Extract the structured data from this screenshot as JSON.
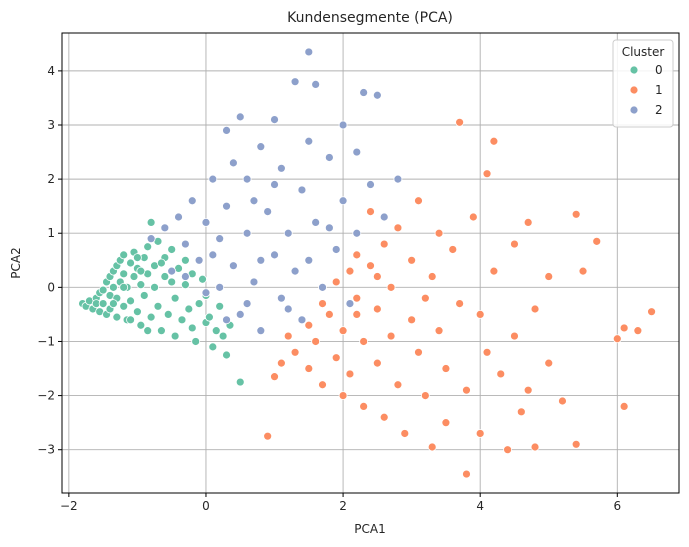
{
  "chart_data": {
    "type": "scatter",
    "title": "Kundensegmente (PCA)",
    "xlabel": "PCA1",
    "ylabel": "PCA2",
    "xlim": [
      -2.1,
      6.9
    ],
    "ylim": [
      -3.8,
      4.7
    ],
    "xticks": [
      -2,
      0,
      2,
      4,
      6
    ],
    "yticks": [
      -3,
      -2,
      -1,
      0,
      1,
      2,
      3,
      4
    ],
    "grid": true,
    "legend": {
      "title": "Cluster",
      "placement": "top-right"
    },
    "series": [
      {
        "name": "0",
        "color": "#66c2a5",
        "points": [
          [
            -1.8,
            -0.3
          ],
          [
            -1.75,
            -0.35
          ],
          [
            -1.7,
            -0.25
          ],
          [
            -1.65,
            -0.4
          ],
          [
            -1.6,
            -0.2
          ],
          [
            -1.6,
            -0.3
          ],
          [
            -1.55,
            -0.1
          ],
          [
            -1.55,
            -0.45
          ],
          [
            -1.5,
            -0.05
          ],
          [
            -1.5,
            -0.3
          ],
          [
            -1.45,
            0.1
          ],
          [
            -1.45,
            -0.5
          ],
          [
            -1.4,
            0.2
          ],
          [
            -1.4,
            -0.15
          ],
          [
            -1.4,
            -0.4
          ],
          [
            -1.35,
            0.3
          ],
          [
            -1.35,
            0.0
          ],
          [
            -1.3,
            -0.55
          ],
          [
            -1.3,
            0.4
          ],
          [
            -1.3,
            -0.2
          ],
          [
            -1.25,
            0.5
          ],
          [
            -1.25,
            0.1
          ],
          [
            -1.2,
            -0.35
          ],
          [
            -1.2,
            0.6
          ],
          [
            -1.2,
            0.25
          ],
          [
            -1.15,
            -0.6
          ],
          [
            -1.15,
            0.0
          ],
          [
            -1.1,
            0.45
          ],
          [
            -1.1,
            -0.25
          ],
          [
            -1.05,
            0.65
          ],
          [
            -1.05,
            0.2
          ],
          [
            -1.0,
            -0.45
          ],
          [
            -1.0,
            0.35
          ],
          [
            -0.95,
            0.05
          ],
          [
            -0.95,
            -0.7
          ],
          [
            -0.9,
            0.55
          ],
          [
            -0.9,
            -0.15
          ],
          [
            -0.85,
            0.75
          ],
          [
            -0.85,
            0.25
          ],
          [
            -0.8,
            -0.55
          ],
          [
            -0.8,
            1.2
          ],
          [
            -0.75,
            0.0
          ],
          [
            -0.75,
            0.4
          ],
          [
            -0.7,
            -0.35
          ],
          [
            -0.7,
            0.85
          ],
          [
            -0.65,
            -0.8
          ],
          [
            -0.6,
            0.2
          ],
          [
            -0.6,
            0.55
          ],
          [
            -0.55,
            -0.5
          ],
          [
            -0.5,
            0.1
          ],
          [
            -0.5,
            0.7
          ],
          [
            -0.45,
            -0.2
          ],
          [
            -0.45,
            -0.9
          ],
          [
            -0.4,
            0.35
          ],
          [
            -0.35,
            -0.6
          ],
          [
            -0.3,
            0.5
          ],
          [
            -0.3,
            0.05
          ],
          [
            -0.25,
            -0.4
          ],
          [
            -0.2,
            -0.75
          ],
          [
            -0.2,
            0.25
          ],
          [
            -0.15,
            -1.0
          ],
          [
            -0.1,
            -0.3
          ],
          [
            -0.05,
            0.15
          ],
          [
            0.0,
            -0.65
          ],
          [
            0.0,
            -0.15
          ],
          [
            0.05,
            -0.55
          ],
          [
            0.1,
            -1.1
          ],
          [
            0.15,
            -0.8
          ],
          [
            0.2,
            -0.35
          ],
          [
            0.25,
            -0.9
          ],
          [
            0.3,
            -1.25
          ],
          [
            0.35,
            -0.7
          ],
          [
            0.5,
            -1.75
          ],
          [
            -0.85,
            -0.8
          ],
          [
            -1.0,
            0.55
          ],
          [
            -1.1,
            -0.6
          ],
          [
            -0.95,
            0.3
          ],
          [
            -1.2,
            0.0
          ],
          [
            -1.35,
            -0.3
          ],
          [
            -0.65,
            0.45
          ]
        ]
      },
      {
        "name": "1",
        "color": "#fc8d62",
        "points": [
          [
            0.9,
            -2.75
          ],
          [
            1.0,
            -1.65
          ],
          [
            1.1,
            -1.4
          ],
          [
            1.2,
            -0.9
          ],
          [
            1.3,
            -1.2
          ],
          [
            1.4,
            -0.6
          ],
          [
            1.5,
            -0.7
          ],
          [
            1.5,
            -1.5
          ],
          [
            1.6,
            -1.0
          ],
          [
            1.7,
            -0.3
          ],
          [
            1.7,
            -1.8
          ],
          [
            1.8,
            -0.5
          ],
          [
            1.9,
            -1.3
          ],
          [
            1.9,
            0.1
          ],
          [
            2.0,
            -0.8
          ],
          [
            2.0,
            -2.0
          ],
          [
            2.1,
            0.3
          ],
          [
            2.1,
            -1.6
          ],
          [
            2.2,
            -0.2
          ],
          [
            2.2,
            0.6
          ],
          [
            2.3,
            -1.0
          ],
          [
            2.3,
            -2.2
          ],
          [
            2.4,
            0.4
          ],
          [
            2.4,
            1.4
          ],
          [
            2.5,
            -0.4
          ],
          [
            2.5,
            -1.4
          ],
          [
            2.6,
            0.8
          ],
          [
            2.6,
            -2.4
          ],
          [
            2.7,
            0.0
          ],
          [
            2.7,
            -0.9
          ],
          [
            2.8,
            1.1
          ],
          [
            2.8,
            -1.8
          ],
          [
            2.9,
            -2.7
          ],
          [
            3.0,
            0.5
          ],
          [
            3.0,
            -0.6
          ],
          [
            3.1,
            1.6
          ],
          [
            3.1,
            -1.2
          ],
          [
            3.2,
            -2.0
          ],
          [
            3.3,
            0.2
          ],
          [
            3.3,
            -2.95
          ],
          [
            3.4,
            -0.8
          ],
          [
            3.4,
            1.0
          ],
          [
            3.5,
            -1.5
          ],
          [
            3.5,
            -2.5
          ],
          [
            3.6,
            0.7
          ],
          [
            3.7,
            3.05
          ],
          [
            3.7,
            -0.3
          ],
          [
            3.8,
            -1.9
          ],
          [
            3.8,
            -3.45
          ],
          [
            3.9,
            1.3
          ],
          [
            4.0,
            -0.5
          ],
          [
            4.0,
            -2.7
          ],
          [
            4.1,
            2.1
          ],
          [
            4.1,
            -1.2
          ],
          [
            4.2,
            2.7
          ],
          [
            4.2,
            0.3
          ],
          [
            4.3,
            -1.6
          ],
          [
            4.4,
            -3.0
          ],
          [
            4.5,
            0.8
          ],
          [
            4.5,
            -0.9
          ],
          [
            4.6,
            -2.3
          ],
          [
            4.7,
            1.2
          ],
          [
            4.7,
            -1.9
          ],
          [
            4.8,
            -0.4
          ],
          [
            4.8,
            -2.95
          ],
          [
            5.0,
            0.2
          ],
          [
            5.0,
            -1.4
          ],
          [
            5.2,
            -2.1
          ],
          [
            5.4,
            1.35
          ],
          [
            5.4,
            -2.9
          ],
          [
            5.5,
            0.3
          ],
          [
            5.7,
            0.85
          ],
          [
            6.0,
            -0.95
          ],
          [
            6.1,
            -0.75
          ],
          [
            6.1,
            -2.2
          ],
          [
            6.3,
            -0.8
          ],
          [
            6.5,
            -0.45
          ],
          [
            2.2,
            -0.5
          ],
          [
            2.5,
            0.2
          ],
          [
            3.2,
            -0.2
          ]
        ]
      },
      {
        "name": "2",
        "color": "#8da0cb",
        "points": [
          [
            -0.8,
            0.9
          ],
          [
            -0.6,
            1.1
          ],
          [
            -0.5,
            0.3
          ],
          [
            -0.4,
            1.3
          ],
          [
            -0.3,
            0.8
          ],
          [
            -0.2,
            1.6
          ],
          [
            -0.1,
            0.5
          ],
          [
            0.0,
            1.2
          ],
          [
            0.0,
            -0.1
          ],
          [
            0.1,
            2.0
          ],
          [
            0.2,
            0.9
          ],
          [
            0.2,
            0.0
          ],
          [
            0.3,
            2.9
          ],
          [
            0.3,
            1.5
          ],
          [
            0.4,
            0.4
          ],
          [
            0.4,
            2.3
          ],
          [
            0.5,
            -0.5
          ],
          [
            0.5,
            3.15
          ],
          [
            0.6,
            1.0
          ],
          [
            0.6,
            2.0
          ],
          [
            0.7,
            0.1
          ],
          [
            0.8,
            2.6
          ],
          [
            0.8,
            -0.8
          ],
          [
            0.9,
            1.4
          ],
          [
            1.0,
            0.6
          ],
          [
            1.0,
            3.1
          ],
          [
            1.1,
            -0.2
          ],
          [
            1.1,
            2.2
          ],
          [
            1.2,
            1.0
          ],
          [
            1.3,
            3.8
          ],
          [
            1.3,
            0.3
          ],
          [
            1.4,
            1.8
          ],
          [
            1.4,
            -0.6
          ],
          [
            1.5,
            4.35
          ],
          [
            1.5,
            2.7
          ],
          [
            1.6,
            3.75
          ],
          [
            1.6,
            1.2
          ],
          [
            1.7,
            0.0
          ],
          [
            1.8,
            2.4
          ],
          [
            1.9,
            0.7
          ],
          [
            2.0,
            3.0
          ],
          [
            2.0,
            1.6
          ],
          [
            2.1,
            -0.3
          ],
          [
            2.2,
            2.5
          ],
          [
            2.2,
            1.0
          ],
          [
            2.3,
            3.6
          ],
          [
            2.4,
            1.9
          ],
          [
            2.5,
            3.55
          ],
          [
            2.6,
            1.3
          ],
          [
            2.8,
            2.0
          ],
          [
            0.6,
            -0.3
          ],
          [
            0.8,
            0.5
          ],
          [
            1.2,
            -0.4
          ],
          [
            1.0,
            1.9
          ],
          [
            0.7,
            1.6
          ],
          [
            -0.3,
            0.2
          ],
          [
            0.1,
            0.6
          ],
          [
            0.3,
            -0.6
          ],
          [
            1.5,
            0.5
          ],
          [
            1.8,
            1.1
          ]
        ]
      }
    ]
  }
}
